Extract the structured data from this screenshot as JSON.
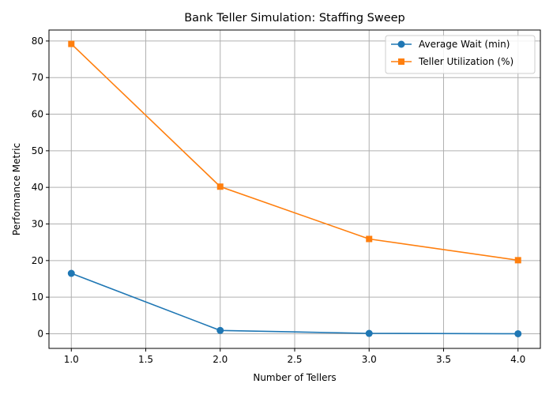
{
  "chart_data": {
    "type": "line",
    "title": "Bank Teller Simulation: Staffing Sweep",
    "xlabel": "Number of Tellers",
    "ylabel": "Performance Metric",
    "x": [
      1,
      2,
      3,
      4
    ],
    "xlim": [
      0.85,
      4.15
    ],
    "ylim": [
      -4,
      83
    ],
    "xticks": [
      "1.0",
      "1.5",
      "2.0",
      "2.5",
      "3.0",
      "3.5",
      "4.0"
    ],
    "yticks": [
      "0",
      "10",
      "20",
      "30",
      "40",
      "50",
      "60",
      "70",
      "80"
    ],
    "grid": true,
    "legend_position": "top-right",
    "series": [
      {
        "name": "Average Wait (min)",
        "values": [
          16.5,
          0.9,
          0.1,
          0.0
        ],
        "color": "#1f77b4",
        "marker": "circle"
      },
      {
        "name": "Teller Utilization (%)",
        "values": [
          79.2,
          40.2,
          25.9,
          20.1
        ],
        "color": "#ff7f0e",
        "marker": "square"
      }
    ]
  }
}
